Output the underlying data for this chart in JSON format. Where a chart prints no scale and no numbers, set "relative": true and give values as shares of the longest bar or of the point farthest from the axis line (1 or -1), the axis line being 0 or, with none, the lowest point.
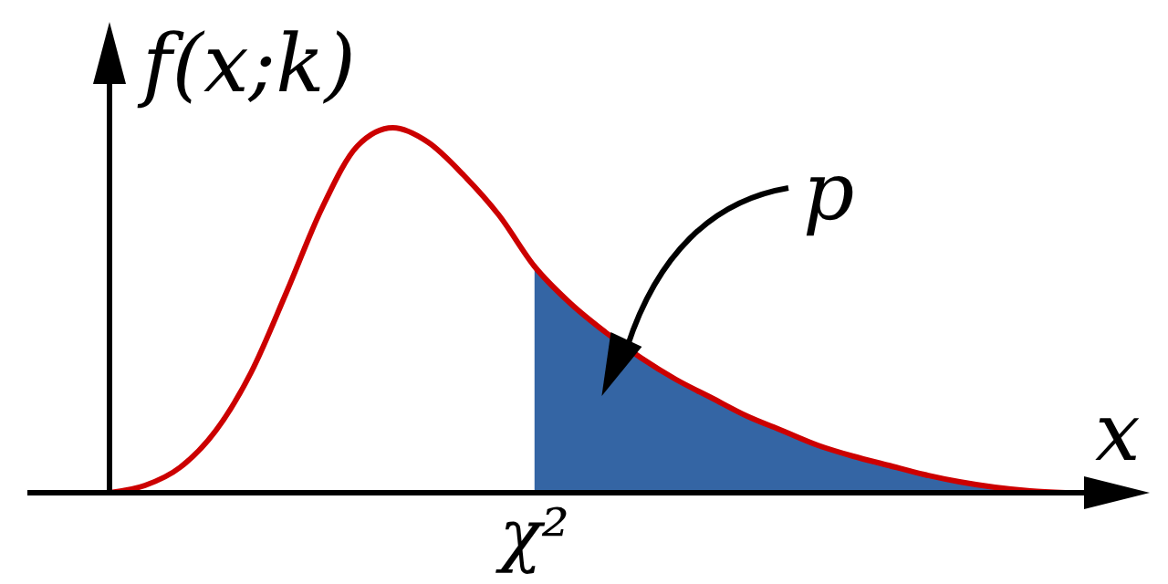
{
  "chart_data": {
    "type": "line",
    "relative": true,
    "xlabel": "x",
    "ylabel": "f(x;k)",
    "annotations": [
      "p",
      "χ²"
    ],
    "categories": [
      null,
      null,
      null,
      null,
      null,
      null,
      null,
      null,
      null,
      null,
      null,
      null,
      null,
      null,
      null,
      null,
      null,
      null,
      null,
      null,
      null,
      null,
      null,
      null,
      null,
      null,
      null,
      null
    ],
    "series": [
      {
        "type": "area",
        "color": "#3465a4",
        "values": [
          null,
          null,
          null,
          null,
          null,
          null,
          null,
          null,
          null,
          null,
          null,
          null,
          0.62,
          0.52,
          0.44,
          0.37,
          0.31,
          0.26,
          0.21,
          0.17,
          0.13,
          0.1,
          0.075,
          0.05,
          0.03,
          0.015,
          0.005,
          0
        ]
      },
      {
        "color": "#cc0000",
        "values": [
          0,
          0.02,
          0.07,
          0.17,
          0.33,
          0.55,
          0.78,
          0.95,
          1,
          0.96,
          0.87,
          0.76,
          0.62,
          0.52,
          0.44,
          0.37,
          0.31,
          0.26,
          0.21,
          0.17,
          0.13,
          0.1,
          0.075,
          0.05,
          0.03,
          0.015,
          0.005,
          0
        ]
      }
    ]
  }
}
